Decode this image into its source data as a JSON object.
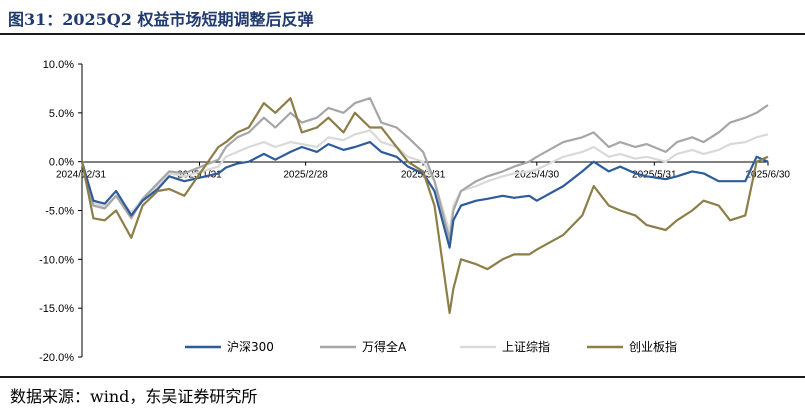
{
  "figure": {
    "title": "图31：2025Q2 权益市场短期调整后反弹",
    "source": "数据来源：wind，东吴证券研究所"
  },
  "chart_data": {
    "type": "line",
    "xlabel": "",
    "ylabel": "",
    "ylim": [
      -0.2,
      0.1
    ],
    "yticks": [
      {
        "value": 0.1,
        "label": "10.0%"
      },
      {
        "value": 0.05,
        "label": "5.0%"
      },
      {
        "value": 0.0,
        "label": "0.0%"
      },
      {
        "value": -0.05,
        "label": "-5.0%"
      },
      {
        "value": -0.1,
        "label": "-10.0%"
      },
      {
        "value": -0.15,
        "label": "-15.0%"
      },
      {
        "value": -0.2,
        "label": "-20.0%"
      }
    ],
    "xticks": [
      {
        "date": "2024-12-31",
        "label": "2024/12/31"
      },
      {
        "date": "2025-01-31",
        "label": "2025/1/31"
      },
      {
        "date": "2025-02-28",
        "label": "2025/2/28"
      },
      {
        "date": "2025-03-31",
        "label": "2025/3/31"
      },
      {
        "date": "2025-04-30",
        "label": "2025/4/30"
      },
      {
        "date": "2025-05-31",
        "label": "2025/5/31"
      },
      {
        "date": "2025-06-30",
        "label": "2025/6/30"
      }
    ],
    "x_range": [
      "2024-12-31",
      "2025-06-30"
    ],
    "grid": false,
    "legend_position": "bottom",
    "x": [
      "2024-12-31",
      "2025-01-03",
      "2025-01-06",
      "2025-01-09",
      "2025-01-13",
      "2025-01-16",
      "2025-01-20",
      "2025-01-23",
      "2025-01-27",
      "2025-02-05",
      "2025-02-07",
      "2025-02-10",
      "2025-02-13",
      "2025-02-17",
      "2025-02-20",
      "2025-02-24",
      "2025-02-27",
      "2025-03-03",
      "2025-03-06",
      "2025-03-10",
      "2025-03-13",
      "2025-03-17",
      "2025-03-20",
      "2025-03-24",
      "2025-03-27",
      "2025-03-31",
      "2025-04-03",
      "2025-04-07",
      "2025-04-08",
      "2025-04-10",
      "2025-04-14",
      "2025-04-17",
      "2025-04-21",
      "2025-04-24",
      "2025-04-28",
      "2025-04-30",
      "2025-05-07",
      "2025-05-12",
      "2025-05-15",
      "2025-05-19",
      "2025-05-22",
      "2025-05-26",
      "2025-05-29",
      "2025-06-03",
      "2025-06-06",
      "2025-06-10",
      "2025-06-13",
      "2025-06-17",
      "2025-06-20",
      "2025-06-24",
      "2025-06-27",
      "2025-06-30"
    ],
    "series": [
      {
        "name": "沪深300",
        "color": "#2e5b9a",
        "values": [
          0.0,
          -0.04,
          -0.043,
          -0.03,
          -0.055,
          -0.04,
          -0.028,
          -0.015,
          -0.02,
          -0.012,
          -0.006,
          -0.002,
          0.0,
          0.008,
          0.002,
          0.01,
          0.015,
          0.01,
          0.018,
          0.012,
          0.015,
          0.02,
          0.01,
          0.005,
          -0.005,
          -0.012,
          -0.03,
          -0.088,
          -0.06,
          -0.045,
          -0.04,
          -0.038,
          -0.035,
          -0.037,
          -0.035,
          -0.04,
          -0.025,
          -0.01,
          0.0,
          -0.01,
          -0.005,
          -0.012,
          -0.015,
          -0.018,
          -0.015,
          -0.01,
          -0.012,
          -0.02,
          -0.02,
          -0.02,
          0.005,
          0.0
        ]
      },
      {
        "name": "万得全A",
        "color": "#a6a6a6",
        "values": [
          0.0,
          -0.045,
          -0.048,
          -0.035,
          -0.058,
          -0.038,
          -0.022,
          -0.01,
          -0.012,
          0.002,
          0.015,
          0.025,
          0.03,
          0.045,
          0.035,
          0.05,
          0.04,
          0.045,
          0.055,
          0.05,
          0.06,
          0.065,
          0.04,
          0.035,
          0.025,
          0.01,
          -0.02,
          -0.08,
          -0.05,
          -0.03,
          -0.02,
          -0.015,
          -0.01,
          -0.005,
          0.0,
          0.005,
          0.02,
          0.025,
          0.03,
          0.015,
          0.02,
          0.015,
          0.018,
          0.01,
          0.02,
          0.025,
          0.02,
          0.03,
          0.04,
          0.045,
          0.05,
          0.058
        ]
      },
      {
        "name": "上证综指",
        "color": "#d9d9d9",
        "values": [
          0.0,
          -0.042,
          -0.046,
          -0.035,
          -0.052,
          -0.038,
          -0.025,
          -0.012,
          -0.015,
          -0.005,
          0.005,
          0.01,
          0.015,
          0.02,
          0.015,
          0.02,
          0.018,
          0.015,
          0.025,
          0.022,
          0.028,
          0.032,
          0.02,
          0.015,
          0.005,
          0.0,
          -0.02,
          -0.072,
          -0.045,
          -0.03,
          -0.025,
          -0.02,
          -0.015,
          -0.012,
          -0.01,
          -0.008,
          0.005,
          0.01,
          0.015,
          0.005,
          0.008,
          0.003,
          0.005,
          0.0,
          0.008,
          0.012,
          0.008,
          0.012,
          0.018,
          0.02,
          0.025,
          0.028
        ]
      },
      {
        "name": "创业板指",
        "color": "#8c7e48",
        "values": [
          0.0,
          -0.058,
          -0.06,
          -0.05,
          -0.078,
          -0.045,
          -0.03,
          -0.028,
          -0.035,
          0.015,
          0.02,
          0.03,
          0.035,
          0.06,
          0.05,
          0.065,
          0.03,
          0.035,
          0.045,
          0.03,
          0.05,
          0.035,
          0.035,
          0.015,
          0.0,
          -0.01,
          -0.045,
          -0.155,
          -0.13,
          -0.1,
          -0.105,
          -0.11,
          -0.1,
          -0.095,
          -0.095,
          -0.09,
          -0.075,
          -0.055,
          -0.025,
          -0.045,
          -0.05,
          -0.055,
          -0.065,
          -0.07,
          -0.06,
          -0.05,
          -0.04,
          -0.045,
          -0.06,
          -0.055,
          0.0,
          0.005
        ]
      }
    ]
  }
}
